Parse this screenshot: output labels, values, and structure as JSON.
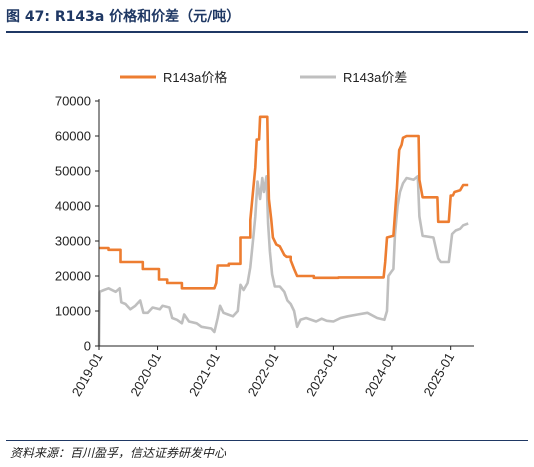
{
  "header": {
    "title": "图 47:  R143a 价格和价差（元/吨）"
  },
  "footer": {
    "source": "资料来源：百川盈孚，信达证券研发中心"
  },
  "colors": {
    "price": "#ED7D31",
    "spread": "#BFBFBF",
    "header": "#1f3864"
  },
  "chart_data": {
    "type": "line",
    "title": "",
    "xlabel": "",
    "ylabel": "",
    "ylim": [
      0,
      70000
    ],
    "yticks": [
      "0",
      "10000",
      "20000",
      "30000",
      "40000",
      "50000",
      "60000",
      "70000"
    ],
    "xticks": [
      "2019-01",
      "2020-01",
      "2021-01",
      "2022-01",
      "2023-01",
      "2024-01",
      "2025-01"
    ],
    "legend_position": "top",
    "grid": false,
    "series": [
      {
        "name": "R143a价格",
        "color": "#ED7D31",
        "points": [
          [
            "2019-01-01",
            28000
          ],
          [
            "2019-03-01",
            28000
          ],
          [
            "2019-03-01",
            27500
          ],
          [
            "2019-05-15",
            27500
          ],
          [
            "2019-05-15",
            24000
          ],
          [
            "2019-10-01",
            24000
          ],
          [
            "2019-10-01",
            22000
          ],
          [
            "2020-01-10",
            22000
          ],
          [
            "2020-01-10",
            19000
          ],
          [
            "2020-03-01",
            19000
          ],
          [
            "2020-03-01",
            18000
          ],
          [
            "2020-06-01",
            18000
          ],
          [
            "2020-06-01",
            16500
          ],
          [
            "2020-12-20",
            16500
          ],
          [
            "2021-01-01",
            18000
          ],
          [
            "2021-01-10",
            23000
          ],
          [
            "2021-03-20",
            23000
          ],
          [
            "2021-03-20",
            23500
          ],
          [
            "2021-06-01",
            23500
          ],
          [
            "2021-06-01",
            31000
          ],
          [
            "2021-08-01",
            31000
          ],
          [
            "2021-08-01",
            36000
          ],
          [
            "2021-08-20",
            45000
          ],
          [
            "2021-09-01",
            51000
          ],
          [
            "2021-09-10",
            59000
          ],
          [
            "2021-09-25",
            59000
          ],
          [
            "2021-10-01",
            65500
          ],
          [
            "2021-11-15",
            65500
          ],
          [
            "2021-11-20",
            52000
          ],
          [
            "2021-11-25",
            42000
          ],
          [
            "2021-12-10",
            36000
          ],
          [
            "2021-12-20",
            31000
          ],
          [
            "2022-01-10",
            29000
          ],
          [
            "2022-02-01",
            28500
          ],
          [
            "2022-03-01",
            26000
          ],
          [
            "2022-03-15",
            25500
          ],
          [
            "2022-04-10",
            25500
          ],
          [
            "2022-04-10",
            24500
          ],
          [
            "2022-05-01",
            22000
          ],
          [
            "2022-05-20",
            20000
          ],
          [
            "2022-09-01",
            20000
          ],
          [
            "2022-09-01",
            19500
          ],
          [
            "2023-02-01",
            19500
          ],
          [
            "2023-02-01",
            19600
          ],
          [
            "2023-11-10",
            19600
          ],
          [
            "2023-11-20",
            24000
          ],
          [
            "2023-12-01",
            31000
          ],
          [
            "2024-01-10",
            31500
          ],
          [
            "2024-01-25",
            41000
          ],
          [
            "2024-02-01",
            45000
          ],
          [
            "2024-02-08",
            51000
          ],
          [
            "2024-02-15",
            56000
          ],
          [
            "2024-03-01",
            57500
          ],
          [
            "2024-03-10",
            59500
          ],
          [
            "2024-04-01",
            60000
          ],
          [
            "2024-06-15",
            60000
          ],
          [
            "2024-06-20",
            47500
          ],
          [
            "2024-07-10",
            42500
          ],
          [
            "2024-10-10",
            42500
          ],
          [
            "2024-10-15",
            35500
          ],
          [
            "2024-12-20",
            35500
          ],
          [
            "2025-01-01",
            43000
          ],
          [
            "2025-01-15",
            43000
          ],
          [
            "2025-01-25",
            44000
          ],
          [
            "2025-03-01",
            44500
          ],
          [
            "2025-03-20",
            46000
          ],
          [
            "2025-04-20",
            46000
          ]
        ]
      },
      {
        "name": "R143a价差",
        "color": "#BFBFBF",
        "points": [
          [
            "2019-01-01",
            0
          ],
          [
            "2019-01-05",
            15500
          ],
          [
            "2019-02-01",
            16000
          ],
          [
            "2019-03-01",
            16500
          ],
          [
            "2019-04-15",
            15500
          ],
          [
            "2019-05-10",
            16500
          ],
          [
            "2019-05-20",
            12500
          ],
          [
            "2019-06-15",
            12000
          ],
          [
            "2019-07-15",
            10500
          ],
          [
            "2019-08-15",
            11500
          ],
          [
            "2019-09-15",
            13000
          ],
          [
            "2019-10-05",
            9500
          ],
          [
            "2019-11-01",
            9500
          ],
          [
            "2019-12-01",
            11000
          ],
          [
            "2020-01-15",
            10500
          ],
          [
            "2020-02-01",
            11500
          ],
          [
            "2020-03-15",
            11000
          ],
          [
            "2020-04-01",
            8000
          ],
          [
            "2020-05-01",
            7500
          ],
          [
            "2020-06-01",
            6500
          ],
          [
            "2020-06-15",
            9000
          ],
          [
            "2020-07-15",
            7000
          ],
          [
            "2020-09-01",
            6500
          ],
          [
            "2020-10-01",
            5500
          ],
          [
            "2020-12-01",
            5000
          ],
          [
            "2020-12-20",
            4000
          ],
          [
            "2021-01-10",
            8000
          ],
          [
            "2021-01-25",
            11500
          ],
          [
            "2021-02-15",
            9500
          ],
          [
            "2021-03-15",
            9000
          ],
          [
            "2021-04-15",
            8500
          ],
          [
            "2021-05-15",
            10000
          ],
          [
            "2021-06-01",
            17500
          ],
          [
            "2021-06-20",
            16000
          ],
          [
            "2021-07-15",
            18000
          ],
          [
            "2021-08-01",
            22500
          ],
          [
            "2021-08-20",
            31000
          ],
          [
            "2021-09-01",
            37000
          ],
          [
            "2021-09-15",
            47000
          ],
          [
            "2021-10-01",
            42000
          ],
          [
            "2021-10-15",
            48000
          ],
          [
            "2021-10-25",
            44000
          ],
          [
            "2021-11-10",
            48500
          ],
          [
            "2021-11-20",
            35000
          ],
          [
            "2021-12-01",
            27000
          ],
          [
            "2021-12-15",
            20500
          ],
          [
            "2022-01-01",
            17000
          ],
          [
            "2022-02-01",
            17000
          ],
          [
            "2022-03-01",
            15500
          ],
          [
            "2022-03-20",
            13000
          ],
          [
            "2022-04-10",
            12000
          ],
          [
            "2022-05-01",
            10000
          ],
          [
            "2022-05-20",
            5500
          ],
          [
            "2022-06-10",
            7500
          ],
          [
            "2022-07-15",
            8000
          ],
          [
            "2022-09-15",
            7000
          ],
          [
            "2022-10-20",
            7800
          ],
          [
            "2022-11-20",
            7200
          ],
          [
            "2023-01-01",
            7000
          ],
          [
            "2023-02-15",
            8000
          ],
          [
            "2023-04-01",
            8500
          ],
          [
            "2023-06-01",
            9000
          ],
          [
            "2023-08-01",
            9500
          ],
          [
            "2023-10-01",
            8000
          ],
          [
            "2023-11-15",
            7500
          ],
          [
            "2023-12-01",
            10000
          ],
          [
            "2023-12-10",
            20000
          ],
          [
            "2023-12-25",
            21000
          ],
          [
            "2024-01-10",
            22000
          ],
          [
            "2024-01-20",
            32000
          ],
          [
            "2024-02-05",
            40000
          ],
          [
            "2024-02-20",
            44000
          ],
          [
            "2024-03-10",
            46500
          ],
          [
            "2024-04-01",
            48000
          ],
          [
            "2024-05-15",
            47500
          ],
          [
            "2024-06-10",
            48500
          ],
          [
            "2024-06-20",
            37000
          ],
          [
            "2024-07-10",
            31500
          ],
          [
            "2024-09-15",
            31000
          ],
          [
            "2024-10-15",
            25000
          ],
          [
            "2024-11-01",
            24000
          ],
          [
            "2024-12-20",
            24000
          ],
          [
            "2025-01-10",
            32000
          ],
          [
            "2025-02-01",
            33000
          ],
          [
            "2025-03-01",
            33500
          ],
          [
            "2025-03-20",
            34500
          ],
          [
            "2025-04-20",
            35000
          ]
        ]
      }
    ]
  }
}
